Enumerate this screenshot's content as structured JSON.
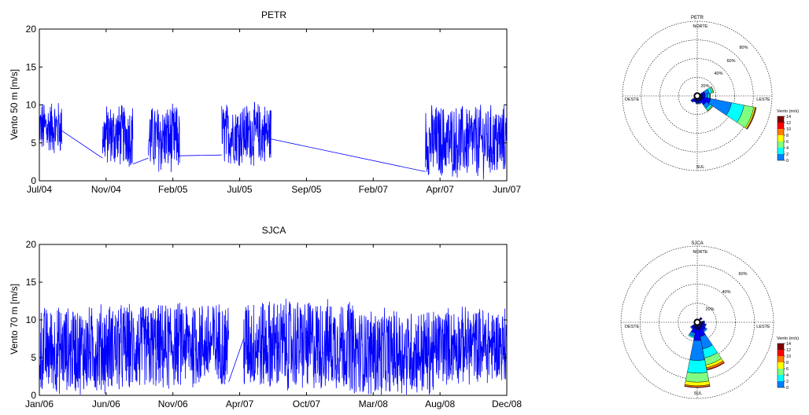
{
  "chart_data": [
    {
      "type": "line",
      "title": "PETR",
      "ylabel": "Vento 50 m [m/s]",
      "xlabel": "",
      "ylim": [
        0,
        20
      ],
      "yticks": [
        0,
        5,
        10,
        15,
        20
      ],
      "xtick_labels": [
        "Jul/04",
        "Nov/04",
        "Feb/05",
        "Jul/05",
        "Sep/05",
        "Feb/07",
        "Apr/07",
        "Jun/07"
      ],
      "series_color": "#0000ff",
      "segments": [
        {
          "xfrac": [
            0.0,
            0.048
          ],
          "center": 7.0,
          "half": 3.2
        },
        {
          "xfrac": [
            0.048,
            0.135
          ],
          "line": [
            6.6,
            3.0
          ]
        },
        {
          "xfrac": [
            0.135,
            0.2
          ],
          "center": 6.0,
          "half": 3.8
        },
        {
          "xfrac": [
            0.2,
            0.233
          ],
          "line": [
            2.2,
            3.0
          ]
        },
        {
          "xfrac": [
            0.233,
            0.3
          ],
          "center": 5.5,
          "half": 4.2
        },
        {
          "xfrac": [
            0.3,
            0.39
          ],
          "line": [
            3.3,
            3.4
          ]
        },
        {
          "xfrac": [
            0.39,
            0.496
          ],
          "center": 6.2,
          "half": 3.8
        },
        {
          "xfrac": [
            0.496,
            0.826
          ],
          "line": [
            5.5,
            1.2
          ]
        },
        {
          "xfrac": [
            0.826,
            1.0
          ],
          "center": 5.2,
          "half": 4.5
        }
      ]
    },
    {
      "type": "line",
      "title": "SJCA",
      "ylabel": "Vento 70 m [m/s]",
      "xlabel": "",
      "ylim": [
        0,
        20
      ],
      "yticks": [
        0,
        5,
        10,
        15,
        20
      ],
      "xtick_labels": [
        "Jan/06",
        "Jun/06",
        "Nov/06",
        "Apr/07",
        "Oct/07",
        "Mar/08",
        "Aug/08",
        "Dec/08"
      ],
      "series_color": "#0000ff",
      "segments": [
        {
          "xfrac": [
            0.0,
            0.12
          ],
          "center": 6.0,
          "half": 5.5
        },
        {
          "xfrac": [
            0.12,
            0.28
          ],
          "center": 6.3,
          "half": 5.6
        },
        {
          "xfrac": [
            0.28,
            0.405
          ],
          "center": 6.8,
          "half": 5.4
        },
        {
          "xfrac": [
            0.405,
            0.437
          ],
          "line": [
            1.8,
            7.5
          ]
        },
        {
          "xfrac": [
            0.437,
            0.67
          ],
          "center": 6.7,
          "half": 5.8
        },
        {
          "xfrac": [
            0.67,
            0.85
          ],
          "center": 5.7,
          "half": 5.4
        },
        {
          "xfrac": [
            0.85,
            1.0
          ],
          "center": 6.6,
          "half": 4.8
        }
      ]
    },
    {
      "type": "wind-rose",
      "title": "PETR",
      "direction_labels": {
        "n": "NORTE",
        "s": "SUL",
        "e": "LESTE",
        "w": "OESTE"
      },
      "ring_labels": [
        "20%",
        "40%",
        "60%",
        "80%"
      ],
      "ring_count": 4,
      "ring_max_percent": 100,
      "legend_title": "Vento (m/s)",
      "legend_ticks": [
        "14",
        "12",
        "10",
        "8",
        "6",
        "4",
        "2",
        "0"
      ],
      "bins": [
        "#00008f",
        "#0000ff",
        "#0080ff",
        "#00ffff",
        "#80ff80",
        "#ffff00",
        "#ff8000",
        "#ff0000",
        "#800000"
      ],
      "petals": [
        {
          "dir": 112.5,
          "stack": [
            [
              0,
              4
            ],
            [
              1,
              10
            ],
            [
              2,
              30
            ],
            [
              3,
              18
            ],
            [
              4,
              14
            ],
            [
              5,
              2
            ],
            [
              6,
              1
            ],
            [
              7,
              0.5
            ]
          ]
        },
        {
          "dir": 135,
          "stack": [
            [
              0,
              3
            ],
            [
              1,
              7
            ],
            [
              2,
              6
            ],
            [
              3,
              3
            ],
            [
              4,
              1.5
            ],
            [
              5,
              0.5
            ]
          ]
        },
        {
          "dir": 90,
          "stack": [
            [
              0,
              2
            ],
            [
              1,
              4
            ],
            [
              2,
              4
            ],
            [
              3,
              2
            ],
            [
              4,
              1
            ],
            [
              5,
              0.5
            ]
          ]
        },
        {
          "dir": 67.5,
          "stack": [
            [
              0,
              2
            ],
            [
              1,
              4
            ],
            [
              2,
              6
            ],
            [
              3,
              4
            ],
            [
              4,
              2
            ],
            [
              5,
              0.5
            ]
          ]
        },
        {
          "dir": 180,
          "stack": [
            [
              0,
              2
            ],
            [
              1,
              3
            ],
            [
              2,
              1
            ]
          ]
        },
        {
          "dir": 202.5,
          "stack": [
            [
              0,
              2
            ],
            [
              1,
              2
            ]
          ]
        },
        {
          "dir": 225,
          "stack": [
            [
              0,
              2
            ],
            [
              1,
              3
            ],
            [
              2,
              1
            ]
          ]
        },
        {
          "dir": 157.5,
          "stack": [
            [
              0,
              2
            ],
            [
              1,
              3
            ],
            [
              2,
              1.5
            ]
          ]
        }
      ]
    },
    {
      "type": "wind-rose",
      "title": "SJCA",
      "direction_labels": {
        "n": "NORTE",
        "s": "SUL",
        "e": "LESTE",
        "w": "OESTE"
      },
      "ring_labels": [
        "20%",
        "40%",
        "60%"
      ],
      "ring_count": 4,
      "ring_max_percent": 80,
      "legend_title": "Vento (m/s)",
      "legend_ticks": [
        "14",
        "12",
        "10",
        "8",
        "6",
        "4",
        "2",
        "0"
      ],
      "bins": [
        "#00008f",
        "#0000ff",
        "#0080ff",
        "#00ffff",
        "#80ff80",
        "#ffff00",
        "#ff8000",
        "#ff0000",
        "#800000"
      ],
      "petals": [
        {
          "dir": 157.5,
          "stack": [
            [
              0,
              4
            ],
            [
              1,
              8
            ],
            [
              2,
              14
            ],
            [
              3,
              10
            ],
            [
              4,
              8
            ],
            [
              5,
              3
            ],
            [
              6,
              2
            ],
            [
              7,
              0.8
            ]
          ]
        },
        {
          "dir": 180,
          "stack": [
            [
              0,
              4
            ],
            [
              1,
              12
            ],
            [
              2,
              22
            ],
            [
              3,
              14
            ],
            [
              4,
              10
            ],
            [
              5,
              4
            ],
            [
              6,
              1.5
            ],
            [
              7,
              0.5
            ]
          ]
        },
        {
          "dir": 202.5,
          "stack": [
            [
              0,
              3
            ],
            [
              1,
              5
            ],
            [
              2,
              4
            ],
            [
              3,
              1.5
            ]
          ]
        },
        {
          "dir": 135,
          "stack": [
            [
              0,
              3
            ],
            [
              1,
              4
            ],
            [
              2,
              2
            ]
          ]
        },
        {
          "dir": 112.5,
          "stack": [
            [
              0,
              2
            ],
            [
              1,
              3
            ],
            [
              2,
              1
            ]
          ]
        },
        {
          "dir": 90,
          "stack": [
            [
              0,
              2
            ],
            [
              1,
              2
            ]
          ]
        },
        {
          "dir": 45,
          "stack": [
            [
              0,
              1.5
            ],
            [
              1,
              1
            ]
          ]
        },
        {
          "dir": 225,
          "stack": [
            [
              0,
              2
            ],
            [
              1,
              2
            ],
            [
              2,
              1
            ]
          ]
        }
      ]
    }
  ]
}
